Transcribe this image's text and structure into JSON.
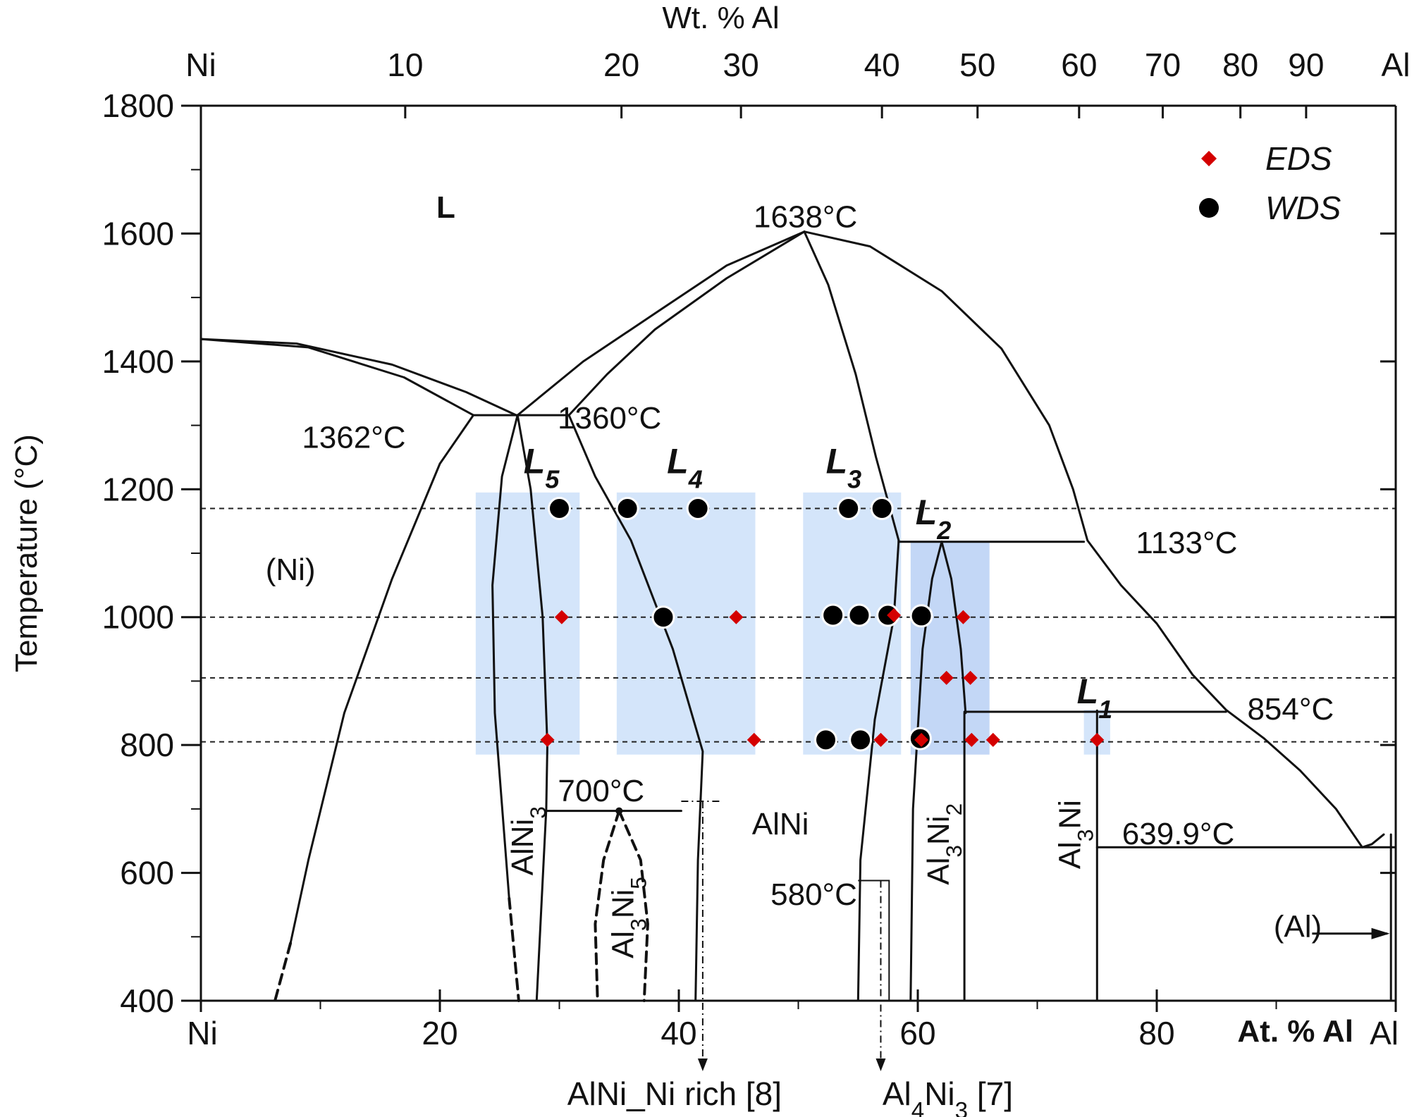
{
  "chart_data": {
    "type": "phase-diagram",
    "title": "",
    "y_axis": {
      "label": "Temperature (°C)",
      "range": [
        400,
        1800
      ],
      "ticks": [
        "400",
        "600",
        "800",
        "1000",
        "1200",
        "1400",
        "1600",
        "1800"
      ]
    },
    "x_bottom": {
      "label": "At. % Al",
      "range": [
        0,
        100
      ],
      "ticks": [
        {
          "at": 0,
          "label": "Ni"
        },
        {
          "at": 20,
          "label": "20"
        },
        {
          "at": 40,
          "label": "40"
        },
        {
          "at": 60,
          "label": "60"
        },
        {
          "at": 80,
          "label": "80"
        },
        {
          "at": 100,
          "label": "Al"
        }
      ]
    },
    "x_top": {
      "label": "Wt. % Al",
      "ticks": [
        {
          "at": 0,
          "label": "Ni"
        },
        {
          "at": 17.1,
          "label": "10"
        },
        {
          "at": 35.2,
          "label": "20"
        },
        {
          "at": 45.2,
          "label": "30"
        },
        {
          "at": 57.0,
          "label": "40"
        },
        {
          "at": 65.0,
          "label": "50"
        },
        {
          "at": 73.5,
          "label": "60"
        },
        {
          "at": 80.5,
          "label": "70"
        },
        {
          "at": 87.0,
          "label": "80"
        },
        {
          "at": 92.5,
          "label": "90"
        },
        {
          "at": 100,
          "label": "Al"
        }
      ]
    },
    "legend": {
      "position": "top-right",
      "entries": [
        {
          "label": "EDS",
          "marker": "diamond",
          "color": "#d40000"
        },
        {
          "label": "WDS",
          "marker": "circle",
          "color": "#000000"
        }
      ]
    },
    "regions": [
      {
        "label": "L",
        "x": 20.5,
        "y": 1625
      },
      {
        "label": "(Ni)",
        "x": 7.5,
        "y": 1058
      },
      {
        "label": "AlNi",
        "x": 48.5,
        "y": 660
      },
      {
        "label": "(Al)",
        "x": 91.8,
        "y": 500
      }
    ],
    "phase_labels": [
      {
        "base": "AlNi",
        "sub": "3",
        "x": 27.8,
        "y": 650
      },
      {
        "base": "Al",
        "sub1": "3",
        "mid": "Ni",
        "sub2": "5",
        "x": 36.2,
        "y": 530
      },
      {
        "base": "Al",
        "sub1": "3",
        "mid": "Ni",
        "sub2": "2",
        "x": 62.6,
        "y": 645
      },
      {
        "base": "Al",
        "sub": "3",
        "mid": "Ni",
        "x": 73.6,
        "y": 660
      }
    ],
    "temperature_labels": [
      {
        "label": "1638°C",
        "x": 50.6,
        "y": 1610
      },
      {
        "label": "1362°C",
        "x": 12.8,
        "y": 1265
      },
      {
        "label": "1360°C",
        "x": 34.2,
        "y": 1295
      },
      {
        "label": "1133°C",
        "x": 82.5,
        "y": 1100
      },
      {
        "label": "854°C",
        "x": 91.2,
        "y": 840
      },
      {
        "label": "700°C",
        "x": 33.5,
        "y": 712
      },
      {
        "label": "639.9°C",
        "x": 81.8,
        "y": 645
      },
      {
        "label": "580°C",
        "x": 51.3,
        "y": 550
      }
    ],
    "series_labels": [
      {
        "label": "L",
        "sub": "5",
        "x": 28.5,
        "y": 1225
      },
      {
        "label": "L",
        "sub": "4",
        "x": 40.5,
        "y": 1225
      },
      {
        "label": "L",
        "sub": "3",
        "x": 53.8,
        "y": 1225
      },
      {
        "label": "L",
        "sub": "2",
        "x": 61.3,
        "y": 1145
      },
      {
        "label": "L",
        "sub": "1",
        "x": 74.8,
        "y": 865
      }
    ],
    "dashed_isotherms": [
      1170,
      1000,
      905,
      805
    ],
    "highlight_boxes": [
      {
        "x1": 23.0,
        "x2": 31.7,
        "y1": 785,
        "y2": 1195,
        "color": "#cfe2fa"
      },
      {
        "x1": 34.8,
        "x2": 46.4,
        "y1": 785,
        "y2": 1195,
        "color": "#cfe2fa"
      },
      {
        "x1": 50.4,
        "x2": 58.6,
        "y1": 785,
        "y2": 1195,
        "color": "#cfe2fa"
      },
      {
        "x1": 59.4,
        "x2": 66.0,
        "y1": 785,
        "y2": 1118,
        "color": "#bcd3f5"
      },
      {
        "x1": 73.9,
        "x2": 76.1,
        "y1": 785,
        "y2": 855,
        "color": "#cfe2fa"
      }
    ],
    "wds_points": [
      {
        "x": 30.0,
        "y": 1170
      },
      {
        "x": 35.7,
        "y": 1170
      },
      {
        "x": 41.6,
        "y": 1170
      },
      {
        "x": 54.2,
        "y": 1170
      },
      {
        "x": 57.0,
        "y": 1170
      },
      {
        "x": 38.7,
        "y": 1000
      },
      {
        "x": 52.9,
        "y": 1003
      },
      {
        "x": 55.1,
        "y": 1003
      },
      {
        "x": 57.5,
        "y": 1003
      },
      {
        "x": 60.3,
        "y": 1002
      },
      {
        "x": 52.3,
        "y": 808
      },
      {
        "x": 55.2,
        "y": 808
      },
      {
        "x": 60.2,
        "y": 810
      }
    ],
    "eds_points": [
      {
        "x": 30.2,
        "y": 1000
      },
      {
        "x": 44.8,
        "y": 1000
      },
      {
        "x": 58.0,
        "y": 1003
      },
      {
        "x": 63.8,
        "y": 1000
      },
      {
        "x": 62.4,
        "y": 905
      },
      {
        "x": 64.4,
        "y": 905
      },
      {
        "x": 29.0,
        "y": 808
      },
      {
        "x": 46.3,
        "y": 808
      },
      {
        "x": 56.9,
        "y": 808
      },
      {
        "x": 60.3,
        "y": 808
      },
      {
        "x": 64.5,
        "y": 808
      },
      {
        "x": 66.3,
        "y": 808
      },
      {
        "x": 75.0,
        "y": 808
      }
    ],
    "reference_labels": [
      {
        "text": "AlNi_Ni rich [8]",
        "x": 42.0
      },
      {
        "base": "Al",
        "sub1": "4",
        "mid": "Ni",
        "sub2": "3",
        "tail": " [7]",
        "x": 56.9
      }
    ]
  }
}
